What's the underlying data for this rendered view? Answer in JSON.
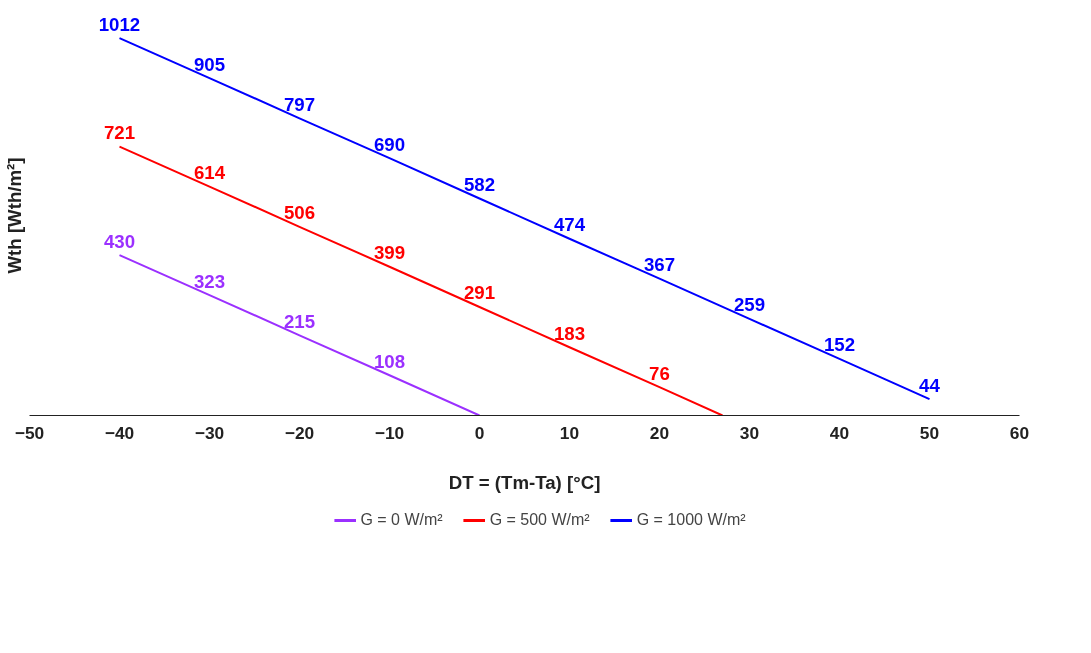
{
  "chart_data": {
    "type": "line",
    "xlabel": "DT = (Tm-Ta) [°C]",
    "ylabel": "Wth [Wth/m²]",
    "xlim": [
      -50,
      60
    ],
    "xticks": [
      -50,
      -40,
      -30,
      -20,
      -10,
      0,
      10,
      20,
      30,
      40,
      50,
      60
    ],
    "tick_labels": "x",
    "grid": false,
    "legend": "bottom",
    "marker": "none",
    "line_style": "solid",
    "series": [
      {
        "name": "G = 0 W/m²",
        "color": "#9b30ff",
        "x": [
          -40,
          -30,
          -20,
          -10,
          0
        ],
        "values": [
          430,
          323,
          215,
          108,
          0
        ],
        "value_labels": [
          "430",
          "323",
          "215",
          "108",
          null
        ]
      },
      {
        "name": "G = 500 W/m²",
        "color": "#ff0000",
        "x": [
          -40,
          -30,
          -20,
          -10,
          0,
          10,
          20,
          27
        ],
        "values": [
          721,
          614,
          506,
          399,
          291,
          183,
          76,
          0
        ],
        "value_labels": [
          "721",
          "614",
          "506",
          "399",
          "291",
          "183",
          "76",
          null
        ]
      },
      {
        "name": "G = 1000 W/m²",
        "color": "#0000ff",
        "x": [
          -40,
          -30,
          -20,
          -10,
          0,
          10,
          20,
          30,
          40,
          50
        ],
        "values": [
          1012,
          905,
          797,
          690,
          582,
          474,
          367,
          259,
          152,
          44
        ],
        "value_labels": [
          "1012",
          "905",
          "797",
          "690",
          "582",
          "474",
          "367",
          "259",
          "152",
          "44"
        ]
      }
    ]
  }
}
